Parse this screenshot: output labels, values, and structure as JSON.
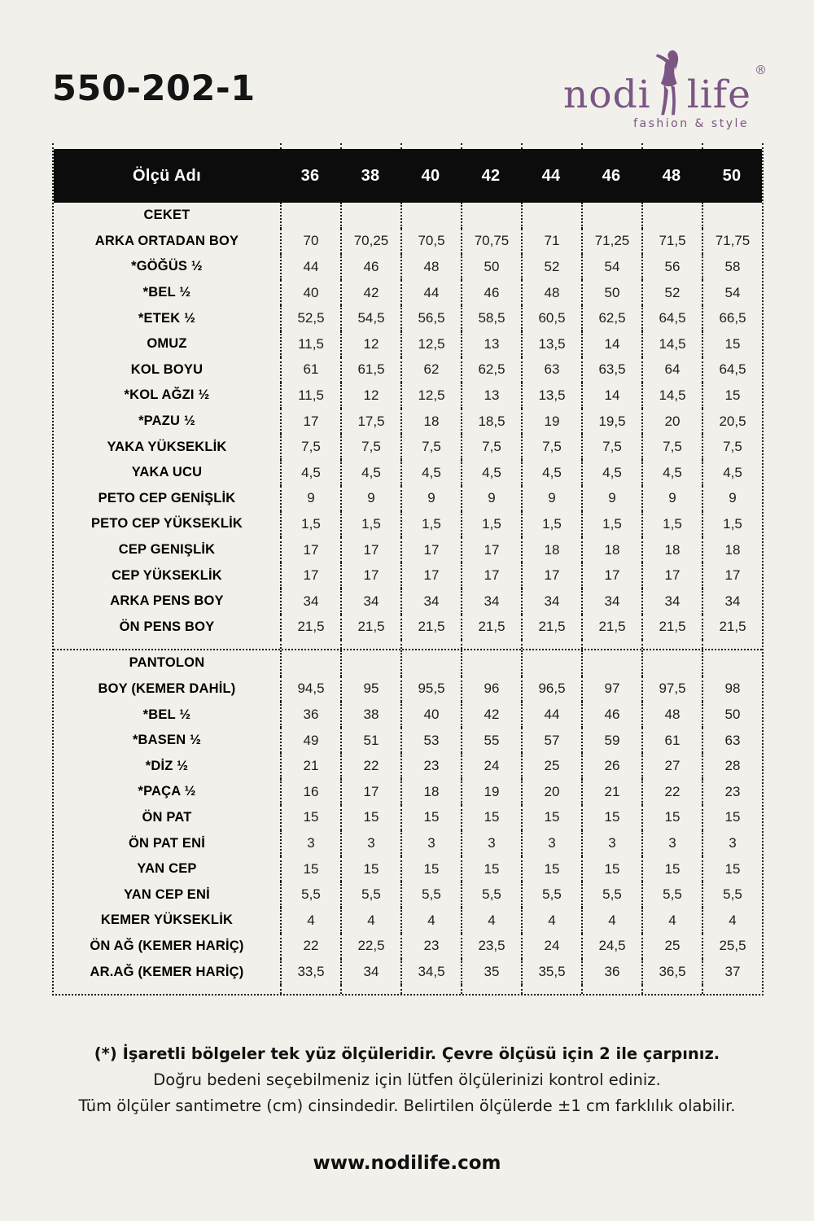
{
  "header": {
    "product_code": "550-202-1"
  },
  "logo": {
    "brand_first": "nodi",
    "brand_second": "life",
    "registered": "®",
    "tagline": "fashion & style",
    "color": "#7b5685"
  },
  "colors": {
    "background": "#f2f0ea",
    "header_bar": "#0c0c0c",
    "accent_purple": "#7b5685"
  },
  "table": {
    "header_label": "Ölçü Adı",
    "sizes": [
      "36",
      "38",
      "40",
      "42",
      "44",
      "46",
      "48",
      "50"
    ],
    "sections": [
      {
        "title": "CEKET",
        "rows": [
          {
            "label": "ARKA ORTADAN BOY",
            "values": [
              "70",
              "70,25",
              "70,5",
              "70,75",
              "71",
              "71,25",
              "71,5",
              "71,75"
            ]
          },
          {
            "label": "*GÖĞÜS ½",
            "values": [
              "44",
              "46",
              "48",
              "50",
              "52",
              "54",
              "56",
              "58"
            ]
          },
          {
            "label": "*BEL ½",
            "values": [
              "40",
              "42",
              "44",
              "46",
              "48",
              "50",
              "52",
              "54"
            ]
          },
          {
            "label": "*ETEK ½",
            "values": [
              "52,5",
              "54,5",
              "56,5",
              "58,5",
              "60,5",
              "62,5",
              "64,5",
              "66,5"
            ]
          },
          {
            "label": "OMUZ",
            "values": [
              "11,5",
              "12",
              "12,5",
              "13",
              "13,5",
              "14",
              "14,5",
              "15"
            ]
          },
          {
            "label": "KOL BOYU",
            "values": [
              "61",
              "61,5",
              "62",
              "62,5",
              "63",
              "63,5",
              "64",
              "64,5"
            ]
          },
          {
            "label": "*KOL AĞZI ½",
            "values": [
              "11,5",
              "12",
              "12,5",
              "13",
              "13,5",
              "14",
              "14,5",
              "15"
            ]
          },
          {
            "label": "*PAZU ½",
            "values": [
              "17",
              "17,5",
              "18",
              "18,5",
              "19",
              "19,5",
              "20",
              "20,5"
            ]
          },
          {
            "label": "YAKA YÜKSEKLİK",
            "values": [
              "7,5",
              "7,5",
              "7,5",
              "7,5",
              "7,5",
              "7,5",
              "7,5",
              "7,5"
            ]
          },
          {
            "label": "YAKA UCU",
            "values": [
              "4,5",
              "4,5",
              "4,5",
              "4,5",
              "4,5",
              "4,5",
              "4,5",
              "4,5"
            ]
          },
          {
            "label": "PETO CEP GENİŞLİK",
            "values": [
              "9",
              "9",
              "9",
              "9",
              "9",
              "9",
              "9",
              "9"
            ]
          },
          {
            "label": "PETO CEP YÜKSEKLİK",
            "values": [
              "1,5",
              "1,5",
              "1,5",
              "1,5",
              "1,5",
              "1,5",
              "1,5",
              "1,5"
            ]
          },
          {
            "label": "CEP GENIŞLİK",
            "values": [
              "17",
              "17",
              "17",
              "17",
              "18",
              "18",
              "18",
              "18"
            ]
          },
          {
            "label": "CEP YÜKSEKLİK",
            "values": [
              "17",
              "17",
              "17",
              "17",
              "17",
              "17",
              "17",
              "17"
            ]
          },
          {
            "label": "ARKA PENS BOY",
            "values": [
              "34",
              "34",
              "34",
              "34",
              "34",
              "34",
              "34",
              "34"
            ]
          },
          {
            "label": "ÖN PENS BOY",
            "values": [
              "21,5",
              "21,5",
              "21,5",
              "21,5",
              "21,5",
              "21,5",
              "21,5",
              "21,5"
            ]
          }
        ]
      },
      {
        "title": "PANTOLON",
        "rows": [
          {
            "label": "BOY (KEMER DAHİL)",
            "values": [
              "94,5",
              "95",
              "95,5",
              "96",
              "96,5",
              "97",
              "97,5",
              "98"
            ]
          },
          {
            "label": "*BEL ½",
            "values": [
              "36",
              "38",
              "40",
              "42",
              "44",
              "46",
              "48",
              "50"
            ]
          },
          {
            "label": "*BASEN ½",
            "values": [
              "49",
              "51",
              "53",
              "55",
              "57",
              "59",
              "61",
              "63"
            ]
          },
          {
            "label": "*DİZ ½",
            "values": [
              "21",
              "22",
              "23",
              "24",
              "25",
              "26",
              "27",
              "28"
            ]
          },
          {
            "label": "*PAÇA ½",
            "values": [
              "16",
              "17",
              "18",
              "19",
              "20",
              "21",
              "22",
              "23"
            ]
          },
          {
            "label": "ÖN PAT",
            "values": [
              "15",
              "15",
              "15",
              "15",
              "15",
              "15",
              "15",
              "15"
            ]
          },
          {
            "label": "ÖN PAT ENİ",
            "values": [
              "3",
              "3",
              "3",
              "3",
              "3",
              "3",
              "3",
              "3"
            ]
          },
          {
            "label": "YAN CEP",
            "values": [
              "15",
              "15",
              "15",
              "15",
              "15",
              "15",
              "15",
              "15"
            ]
          },
          {
            "label": "YAN CEP ENİ",
            "values": [
              "5,5",
              "5,5",
              "5,5",
              "5,5",
              "5,5",
              "5,5",
              "5,5",
              "5,5"
            ]
          },
          {
            "label": "KEMER YÜKSEKLİK",
            "values": [
              "4",
              "4",
              "4",
              "4",
              "4",
              "4",
              "4",
              "4"
            ]
          },
          {
            "label": "ÖN AĞ (KEMER HARİÇ)",
            "values": [
              "22",
              "22,5",
              "23",
              "23,5",
              "24",
              "24,5",
              "25",
              "25,5"
            ]
          },
          {
            "label": "AR.AĞ (KEMER HARİÇ)",
            "values": [
              "33,5",
              "34",
              "34,5",
              "35",
              "35,5",
              "36",
              "36,5",
              "37"
            ]
          }
        ]
      }
    ]
  },
  "footer": {
    "note_bold": "(*) İşaretli bölgeler tek yüz ölçüleridir. Çevre ölçüsü için 2 ile çarpınız.",
    "note_line2": "Doğru bedeni seçebilmeniz için lütfen ölçülerinizi kontrol ediniz.",
    "note_line3": "Tüm ölçüler santimetre (cm) cinsindedir. Belirtilen ölçülerde ±1 cm farklılık olabilir.",
    "website": "www.nodilife.com"
  }
}
